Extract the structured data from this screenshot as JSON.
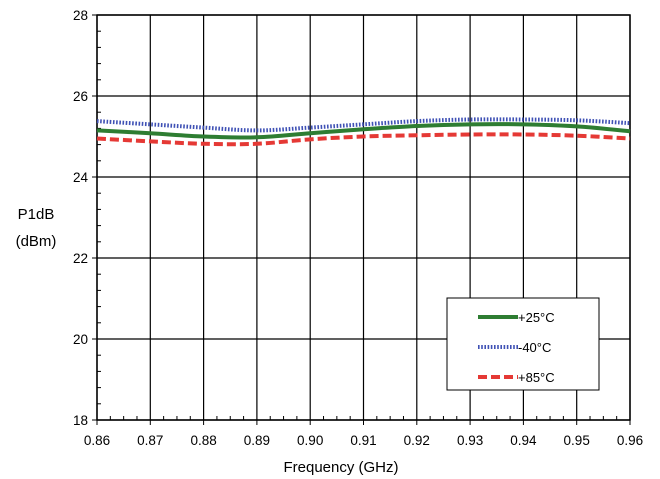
{
  "chart_data": {
    "type": "line",
    "title": "",
    "xlabel": "Frequency (GHz)",
    "ylabel_line1": "P1dB",
    "ylabel_line2": "(dBm)",
    "xlim": [
      0.86,
      0.96
    ],
    "ylim": [
      18,
      28
    ],
    "x_ticks": [
      "0.86",
      "0.87",
      "0.88",
      "0.89",
      "0.90",
      "0.91",
      "0.92",
      "0.93",
      "0.94",
      "0.95",
      "0.96"
    ],
    "y_ticks": [
      "18",
      "20",
      "22",
      "24",
      "26",
      "28"
    ],
    "grid": true,
    "legend_position": "bottom-right",
    "x": [
      0.86,
      0.87,
      0.88,
      0.89,
      0.9,
      0.91,
      0.92,
      0.93,
      0.94,
      0.95,
      0.96
    ],
    "series": [
      {
        "name": "+25°C",
        "color": "#2e7d32",
        "style": "solid",
        "values": [
          25.15,
          25.08,
          25.0,
          24.98,
          25.08,
          25.18,
          25.26,
          25.3,
          25.3,
          25.25,
          25.13
        ]
      },
      {
        "name": "-40°C",
        "color": "#3f51b5",
        "style": "dotted",
        "values": [
          25.38,
          25.3,
          25.22,
          25.15,
          25.22,
          25.3,
          25.38,
          25.42,
          25.42,
          25.4,
          25.33
        ]
      },
      {
        "name": "+85°C",
        "color": "#e53935",
        "style": "dashed",
        "values": [
          24.95,
          24.88,
          24.82,
          24.82,
          24.93,
          25.0,
          25.03,
          25.05,
          25.05,
          25.02,
          24.95
        ]
      }
    ]
  }
}
